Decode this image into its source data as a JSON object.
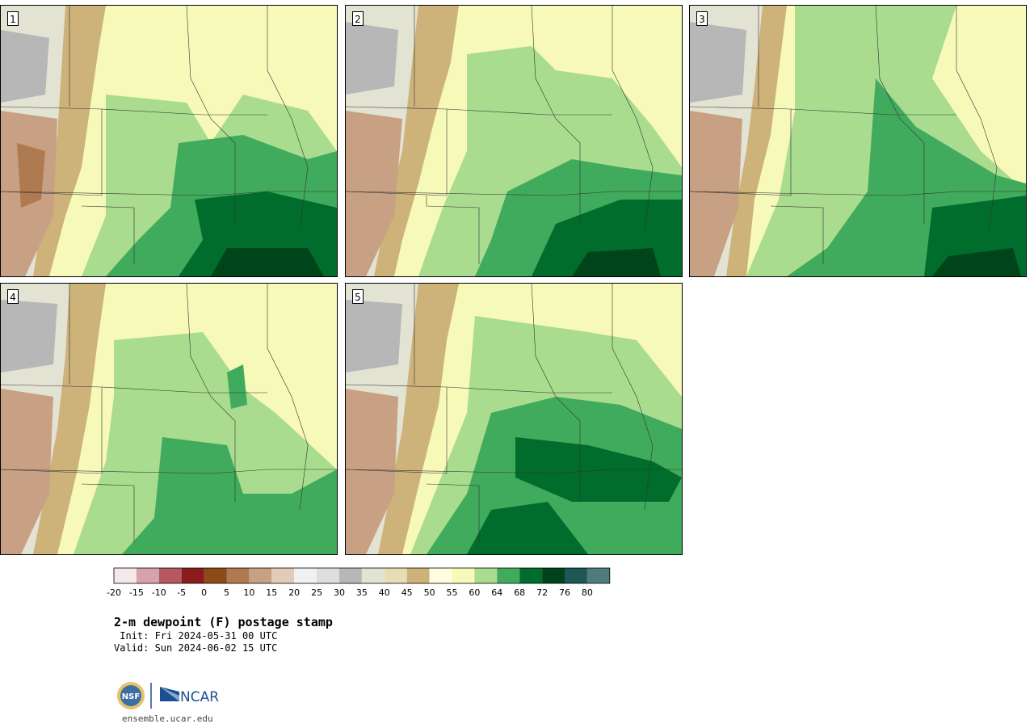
{
  "panels": [
    {
      "label": "1"
    },
    {
      "label": "2"
    },
    {
      "label": "3"
    },
    {
      "label": "4"
    },
    {
      "label": "5"
    }
  ],
  "colorbar": {
    "ticks": [
      "-20",
      "-15",
      "-10",
      "-5",
      "0",
      "5",
      "10",
      "15",
      "20",
      "25",
      "30",
      "35",
      "40",
      "45",
      "50",
      "55",
      "60",
      "64",
      "68",
      "72",
      "76",
      "80"
    ],
    "colors": [
      "#f6e8ea",
      "#d7a3aa",
      "#b5585f",
      "#8b1a1c",
      "#8c4a17",
      "#b07a50",
      "#c8a083",
      "#e3cbb7",
      "#f1f1f1",
      "#dedede",
      "#b7b7b7",
      "#e3e3d3",
      "#e7dcb6",
      "#cdb27a",
      "#fffde0",
      "#f7f9b9",
      "#a9dc8e",
      "#41ab5d",
      "#006d2c",
      "#00441b",
      "#1f5754",
      "#4f7c7b"
    ]
  },
  "title": "2-m dewpoint (F) postage stamp",
  "init": " Init: Fri 2024-05-31 00 UTC",
  "valid": "Valid: Sun 2024-06-02 15 UTC",
  "logos": {
    "nsf": "NSF",
    "ncar": "NCAR"
  },
  "site": "ensemble.ucar.edu"
}
